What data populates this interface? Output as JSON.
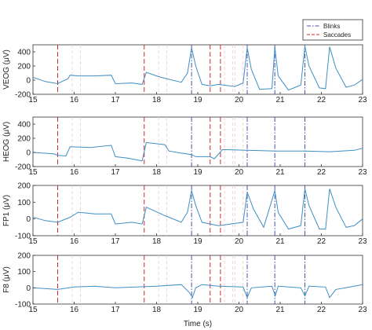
{
  "figure": {
    "xlabel": "Time (s)",
    "legend": [
      {
        "label": "Blinks",
        "color": "#4a55a8",
        "dash": "dashdot"
      },
      {
        "label": "Saccades",
        "color": "#cc2b33",
        "dash": "dashed"
      }
    ]
  },
  "chart_data": [
    {
      "type": "line",
      "ylabel": "VEOG (μV)",
      "xlim": [
        15,
        23
      ],
      "ylim": [
        -200,
        500
      ],
      "xticks": [
        "15",
        "16",
        "17",
        "18",
        "19",
        "20",
        "21",
        "22",
        "23"
      ],
      "yticks": [
        "-200",
        "0",
        "200",
        "400"
      ],
      "ytick_values": [
        -200,
        0,
        200,
        400
      ],
      "series": [
        {
          "x": [
            15,
            15.3,
            15.6,
            15.7,
            15.85,
            15.9,
            16.1,
            16.5,
            16.9,
            17.0,
            17.4,
            17.65,
            17.75,
            18.1,
            18.6,
            18.75,
            18.85,
            18.95,
            19.1,
            19.3,
            19.5,
            19.9,
            20.1,
            20.2,
            20.3,
            20.5,
            20.8,
            20.87,
            20.95,
            21.2,
            21.5,
            21.6,
            21.7,
            21.95,
            22.1,
            22.2,
            22.35,
            22.6,
            22.8,
            23
          ],
          "y": [
            40,
            -20,
            -50,
            -20,
            20,
            70,
            60,
            60,
            70,
            -50,
            -40,
            -60,
            110,
            40,
            -30,
            100,
            460,
            200,
            -60,
            -80,
            -60,
            -90,
            -40,
            460,
            150,
            -130,
            -120,
            470,
            60,
            -140,
            -70,
            480,
            200,
            -110,
            -120,
            470,
            170,
            -100,
            -70,
            10
          ]
        }
      ]
    },
    {
      "type": "line",
      "ylabel": "HEOG (μV)",
      "xlim": [
        15,
        23
      ],
      "ylim": [
        -200,
        500
      ],
      "xticks": [
        "15",
        "16",
        "17",
        "18",
        "19",
        "20",
        "21",
        "22",
        "23"
      ],
      "yticks": [
        "-200",
        "0",
        "200",
        "400"
      ],
      "ytick_values": [
        -200,
        0,
        200,
        400
      ],
      "series": [
        {
          "x": [
            15,
            15.5,
            15.6,
            15.8,
            15.9,
            16.4,
            16.9,
            17.0,
            17.3,
            17.65,
            17.75,
            18.2,
            18.3,
            18.6,
            18.85,
            18.95,
            19.3,
            19.4,
            19.6,
            20.2,
            20.9,
            21.6,
            22.2,
            22.8,
            23
          ],
          "y": [
            0,
            -20,
            -40,
            -50,
            80,
            70,
            100,
            -60,
            -80,
            -120,
            140,
            110,
            20,
            -10,
            -30,
            -60,
            -60,
            -90,
            40,
            30,
            20,
            20,
            10,
            30,
            60
          ]
        }
      ]
    },
    {
      "type": "line",
      "ylabel": "FP1 (μV)",
      "xlim": [
        15,
        23
      ],
      "ylim": [
        -100,
        200
      ],
      "xticks": [
        "15",
        "16",
        "17",
        "18",
        "19",
        "20",
        "21",
        "22",
        "23"
      ],
      "yticks": [
        "-100",
        "0",
        "100",
        "200"
      ],
      "ytick_values": [
        -100,
        0,
        100,
        200
      ],
      "series": [
        {
          "x": [
            15,
            15.3,
            15.6,
            15.9,
            16.1,
            16.5,
            16.9,
            17.0,
            17.4,
            17.65,
            17.75,
            18.2,
            18.6,
            18.75,
            18.85,
            18.95,
            19.1,
            19.5,
            20.1,
            20.2,
            20.35,
            20.6,
            20.87,
            20.95,
            21.2,
            21.5,
            21.6,
            21.7,
            21.95,
            22.1,
            22.2,
            22.35,
            22.6,
            22.8,
            23
          ],
          "y": [
            10,
            -10,
            -20,
            10,
            40,
            30,
            30,
            -30,
            -20,
            -30,
            70,
            20,
            -20,
            40,
            170,
            80,
            -20,
            -40,
            -20,
            160,
            60,
            -50,
            170,
            40,
            -60,
            -40,
            180,
            80,
            -60,
            -60,
            180,
            70,
            -50,
            -40,
            0
          ]
        }
      ]
    },
    {
      "type": "line",
      "ylabel": "F8 (μV)",
      "xlim": [
        15,
        23
      ],
      "ylim": [
        -100,
        200
      ],
      "xticks": [
        "15",
        "16",
        "17",
        "18",
        "19",
        "20",
        "21",
        "22",
        "23"
      ],
      "yticks": [
        "-100",
        "0",
        "100",
        "200"
      ],
      "ytick_values": [
        -100,
        0,
        100,
        200
      ],
      "series": [
        {
          "x": [
            15,
            15.6,
            16.0,
            16.5,
            17.0,
            17.5,
            18.0,
            18.6,
            18.8,
            18.87,
            18.95,
            19.1,
            19.5,
            20.1,
            20.2,
            20.3,
            20.8,
            20.88,
            20.95,
            21.5,
            21.6,
            21.7,
            22.1,
            22.2,
            22.35,
            22.8,
            23
          ],
          "y": [
            0,
            -10,
            5,
            10,
            0,
            5,
            10,
            20,
            -30,
            -60,
            0,
            20,
            10,
            5,
            -60,
            0,
            10,
            -50,
            10,
            0,
            -50,
            10,
            5,
            -60,
            -10,
            10,
            20
          ]
        }
      ]
    }
  ],
  "events": {
    "blinks": [
      18.85,
      20.2,
      20.87,
      21.6
    ],
    "saccades": [
      15.6,
      17.7,
      19.3,
      19.55
    ]
  }
}
